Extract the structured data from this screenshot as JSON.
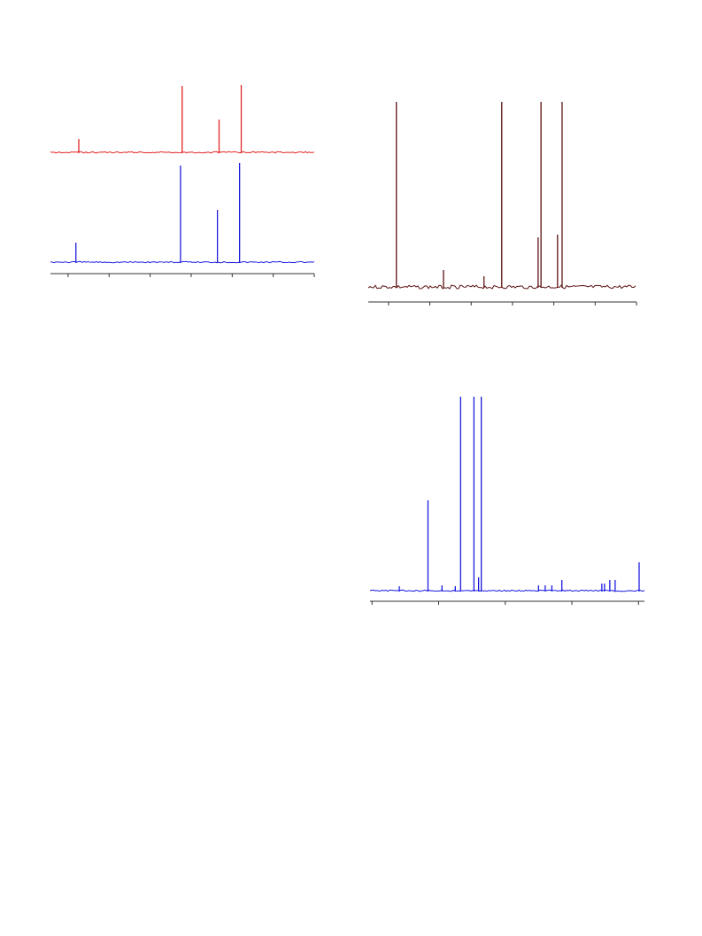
{
  "chart_data": [
    {
      "type": "line",
      "xlim": [
        -0.43,
        6
      ],
      "xticks": [
        0,
        1,
        2,
        3,
        4,
        5,
        6
      ],
      "ylim": [
        0,
        120
      ],
      "series": [
        {
          "color": "#e02424",
          "x": [
            0.26,
            2.78,
            3.68,
            4.22
          ],
          "values": [
            15,
            75,
            37,
            76
          ]
        },
        {
          "color": "#1f1fdd",
          "x": [
            0.19,
            2.74,
            3.64,
            4.18
          ],
          "values": [
            22,
            109,
            59,
            112
          ]
        }
      ]
    },
    {
      "type": "line",
      "xlim": [
        -0.49,
        6
      ],
      "xticks": [
        0,
        1,
        2,
        3,
        4,
        5,
        6
      ],
      "ylim": [
        0,
        215
      ],
      "series": [
        {
          "color": "#5c1212",
          "x": [
            0.19,
            1.33,
            2.31,
            2.74,
            3.62,
            3.69,
            4.09,
            4.2
          ],
          "values": [
            209,
            19,
            12,
            209,
            56,
            209,
            59,
            209
          ]
        }
      ]
    },
    {
      "type": "line",
      "xlim": [
        -0.03,
        4.09
      ],
      "xticks": [
        0,
        1,
        2,
        3,
        4
      ],
      "ylim": [
        0,
        220
      ],
      "series": [
        {
          "color": "#1a1ae0",
          "x": [
            0.41,
            0.84,
            1.05,
            1.25,
            1.33,
            1.53,
            1.6,
            1.64,
            2.5,
            2.6,
            2.7,
            2.85,
            3.45,
            3.49,
            3.57,
            3.65,
            4.01
          ],
          "values": [
            5,
            102,
            6,
            5,
            219,
            219,
            15,
            219,
            6,
            6,
            6,
            12,
            8,
            8,
            12,
            12,
            32
          ]
        }
      ]
    }
  ]
}
